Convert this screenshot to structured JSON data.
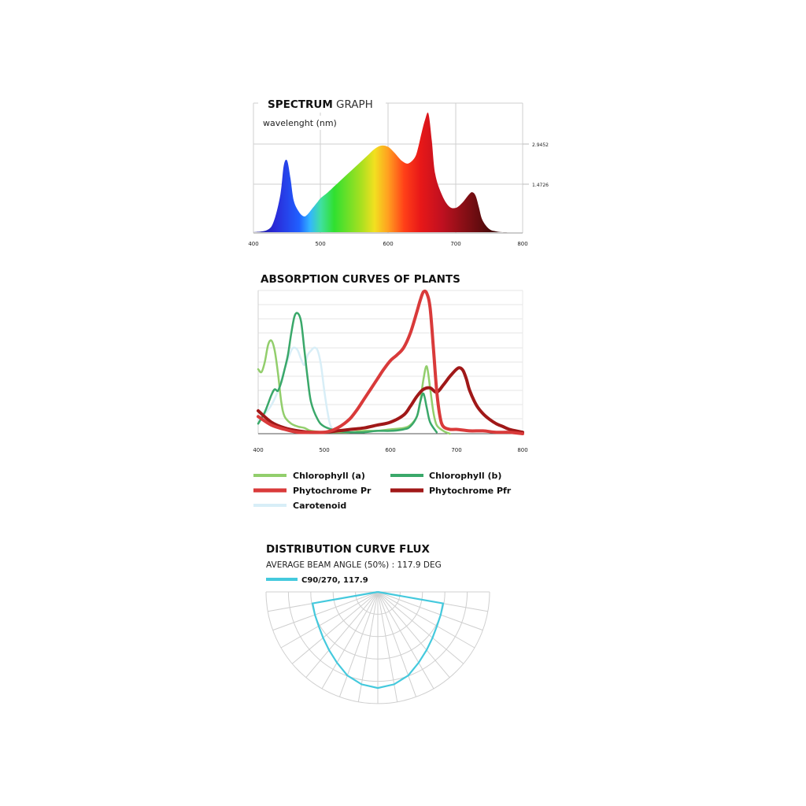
{
  "chart_data": [
    {
      "type": "area",
      "title_bold": "SPECTRUM",
      "title_light": "GRAPH",
      "xlabel": "wavelenght (nm)",
      "xlim": [
        400,
        800
      ],
      "x_ticks": [
        "400",
        "500",
        "600",
        "700",
        "800"
      ],
      "y_ticks": [
        "2.9452",
        "1.4726"
      ],
      "ylim": [
        0,
        3.1
      ],
      "x": [
        400,
        420,
        430,
        440,
        445,
        450,
        455,
        460,
        468,
        475,
        480,
        488,
        495,
        500,
        510,
        520,
        530,
        540,
        550,
        560,
        570,
        580,
        590,
        600,
        610,
        620,
        630,
        640,
        645,
        650,
        655,
        660,
        665,
        670,
        680,
        690,
        700,
        710,
        720,
        725,
        730,
        735,
        740,
        750,
        760,
        770,
        780
      ],
      "values": [
        0,
        0.05,
        0.25,
        0.9,
        1.6,
        1.72,
        1.3,
        0.75,
        0.48,
        0.38,
        0.42,
        0.58,
        0.72,
        0.82,
        0.95,
        1.1,
        1.25,
        1.4,
        1.55,
        1.7,
        1.85,
        2.0,
        2.08,
        2.05,
        1.9,
        1.72,
        1.65,
        1.8,
        2.05,
        2.4,
        2.7,
        2.85,
        2.2,
        1.4,
        0.9,
        0.63,
        0.58,
        0.7,
        0.9,
        0.96,
        0.88,
        0.6,
        0.3,
        0.08,
        0.02,
        0,
        0
      ]
    },
    {
      "type": "line",
      "title": "ABSORPTION CURVES OF PLANTS",
      "xlim": [
        400,
        800
      ],
      "x_ticks": [
        "400",
        "500",
        "600",
        "700",
        "800"
      ],
      "ylim": [
        0,
        100
      ],
      "series": [
        {
          "name": "Chlorophyll (a)",
          "color": "#92ce6c",
          "width": 2.5,
          "x": [
            400,
            405,
            410,
            415,
            420,
            425,
            430,
            435,
            440,
            450,
            460,
            470,
            480,
            500,
            520,
            540,
            560,
            580,
            600,
            620,
            630,
            640,
            645,
            650,
            655,
            660,
            665,
            670,
            680,
            690
          ],
          "values": [
            45,
            43,
            50,
            62,
            65,
            58,
            42,
            22,
            12,
            7,
            5,
            4,
            2,
            1,
            1,
            1,
            2,
            2,
            3,
            4,
            6,
            12,
            22,
            38,
            47,
            32,
            15,
            6,
            2,
            0
          ]
        },
        {
          "name": "Chlorophyll (b)",
          "color": "#3aa86a",
          "width": 2.5,
          "x": [
            400,
            410,
            420,
            425,
            430,
            435,
            440,
            445,
            450,
            455,
            460,
            465,
            470,
            475,
            480,
            490,
            500,
            520,
            540,
            560,
            580,
            600,
            620,
            630,
            640,
            645,
            650,
            655,
            660,
            670
          ],
          "values": [
            7,
            15,
            27,
            31,
            30,
            36,
            45,
            55,
            70,
            82,
            84,
            78,
            58,
            38,
            22,
            10,
            5,
            2,
            1,
            1,
            2,
            2,
            3,
            5,
            12,
            22,
            28,
            18,
            8,
            1
          ]
        },
        {
          "name": "Phytochrome Pr",
          "color": "#d93a3a",
          "width": 4,
          "x": [
            400,
            420,
            440,
            460,
            480,
            500,
            510,
            520,
            530,
            540,
            550,
            560,
            570,
            580,
            590,
            600,
            610,
            620,
            630,
            640,
            645,
            650,
            655,
            660,
            665,
            670,
            675,
            680,
            690,
            700,
            720,
            740,
            760,
            780,
            800
          ],
          "values": [
            12,
            6,
            3,
            1,
            1,
            1,
            2,
            4,
            7,
            11,
            17,
            24,
            31,
            38,
            45,
            51,
            55,
            60,
            70,
            85,
            93,
            99,
            98,
            88,
            60,
            30,
            12,
            5,
            3,
            3,
            2,
            2,
            1,
            1,
            0
          ]
        },
        {
          "name": "Phytochrome Pfr",
          "color": "#a01818",
          "width": 4,
          "x": [
            400,
            420,
            440,
            460,
            480,
            500,
            520,
            540,
            560,
            580,
            600,
            620,
            630,
            640,
            650,
            660,
            670,
            680,
            690,
            700,
            705,
            710,
            715,
            720,
            730,
            740,
            750,
            760,
            770,
            780,
            790,
            800
          ],
          "values": [
            16,
            8,
            4,
            2,
            1,
            1,
            2,
            3,
            4,
            6,
            8,
            13,
            19,
            26,
            31,
            32,
            29,
            34,
            40,
            45,
            46,
            44,
            38,
            30,
            20,
            14,
            10,
            7,
            5,
            3,
            2,
            1
          ]
        },
        {
          "name": "Carotenoid",
          "color": "#d8eef7",
          "width": 2.5,
          "x": [
            400,
            410,
            420,
            430,
            440,
            450,
            455,
            460,
            465,
            470,
            475,
            480,
            485,
            490,
            495,
            500,
            505,
            510,
            520
          ],
          "values": [
            10,
            14,
            20,
            30,
            45,
            58,
            60,
            58,
            52,
            48,
            55,
            58,
            60,
            58,
            48,
            30,
            15,
            5,
            1
          ]
        }
      ]
    },
    {
      "type": "polar",
      "title": "DISTRIBUTION CURVE FLUX",
      "subtitle": "AVERAGE BEAM ANGLE  (50%) : 117.9 DEG",
      "legend": "C90/270, 117.9",
      "series_color": "#44c9dd",
      "angles_deg": [
        -90,
        -80,
        -70,
        -60,
        -50,
        -40,
        -30,
        -20,
        -10,
        0,
        10,
        20,
        30,
        40,
        50,
        60,
        70,
        80,
        90
      ],
      "values": [
        1.0,
        0.9,
        0.85,
        0.82,
        0.82,
        0.84,
        0.88,
        0.94,
        0.98,
        1.0,
        0.98,
        0.94,
        0.88,
        0.84,
        0.82,
        0.82,
        0.85,
        0.9,
        1.0
      ]
    }
  ]
}
